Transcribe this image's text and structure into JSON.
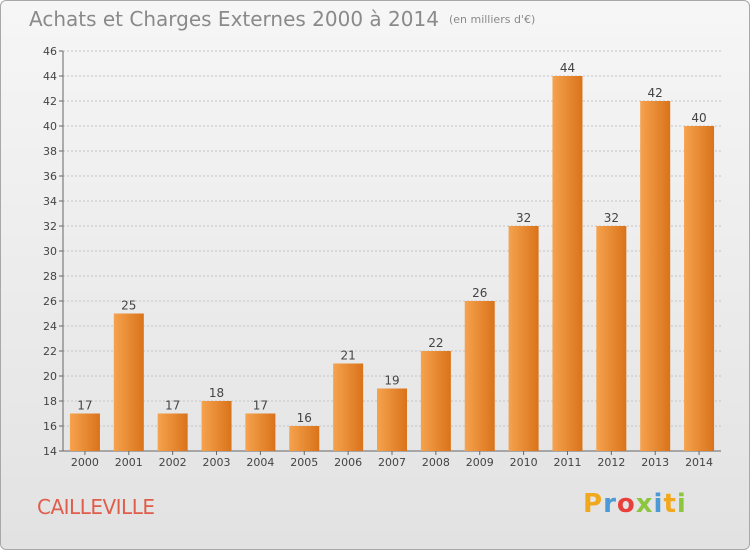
{
  "header": {
    "title": "Achats et Charges Externes 2000 à 2014",
    "unit": "(en milliers d'€)"
  },
  "footer": {
    "commune": "CAILLEVILLE",
    "logo_letters": [
      "P",
      "r",
      "o",
      "x",
      "i",
      "t",
      "i"
    ],
    "logo_colors": [
      "#f2a81d",
      "#4b9ad6",
      "#e8413b",
      "#8cc63f",
      "#4b9ad6",
      "#f2a81d",
      "#8cc63f"
    ]
  },
  "chart_data": {
    "type": "bar",
    "categories": [
      "2000",
      "2001",
      "2002",
      "2003",
      "2004",
      "2005",
      "2006",
      "2007",
      "2008",
      "2009",
      "2010",
      "2011",
      "2012",
      "2013",
      "2014"
    ],
    "values": [
      17,
      25,
      17,
      18,
      17,
      16,
      21,
      19,
      22,
      26,
      32,
      44,
      32,
      42,
      40
    ],
    "title": "Achats et Charges Externes 2000 à 2014",
    "ylim": [
      14,
      46
    ],
    "yticks": [
      14,
      16,
      18,
      20,
      22,
      24,
      26,
      28,
      30,
      32,
      34,
      36,
      38,
      40,
      42,
      44,
      46
    ],
    "grid": true,
    "bar_color_top": "#f6a24e",
    "bar_color_bottom": "#d9731a"
  }
}
